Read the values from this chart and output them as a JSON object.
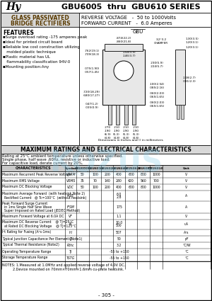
{
  "title": "GBU6005  thru  GBU610 SERIES",
  "logo_text": "Hy",
  "header_left_line1": "GLASS PASSIVATED",
  "header_left_line2": "BRIDGE RECTIFIERS",
  "header_right_line1": "REVERSE VOLTAGE   -  50 to 1000Volts",
  "header_right_line2": "FORWARD CURRENT   -  6.0 Amperes",
  "features_title": "FEATURES",
  "features": [
    "▪Surge overload rating -175 amperes peak",
    "▪Ideal for printed circuit board",
    "▪Reliable low cost construction utilizing",
    "   molded plastic technique",
    "▪Plastic material has UL",
    "   flammability classification 94V-0",
    "▪Mounting position:Any"
  ],
  "max_ratings_title": "MAXIMUM RATINGS AND ELECTRICAL CHARACTERISTICS",
  "rating_note1": "Rating at 25°C ambient temperature unless otherwise specified.",
  "rating_note2": "Single phase, half wave ,60Hz, resistive or inductive load.",
  "rating_note3": "For capacitive load, derate current by 20%.",
  "table_header": [
    "CHARACTERISTICS",
    "Symbol",
    "GBU6005",
    "GBU601",
    "GBU602",
    "GBU604",
    "GBU606",
    "GBU608",
    "GBU6010",
    "Unit"
  ],
  "table_rows": [
    [
      "Maximum Recurrent Peak Reverse Voltage",
      "VRRM",
      "50",
      "100",
      "200",
      "400",
      "600",
      "800",
      "1000",
      "V"
    ],
    [
      "Maximum RMS Voltage",
      "VRMS",
      "35",
      "70",
      "140",
      "280",
      "420",
      "560",
      "700",
      "V"
    ],
    [
      "Maximum DC Blocking Voltage",
      "VDC",
      "50",
      "100",
      "200",
      "400",
      "600",
      "800",
      "1000",
      "V"
    ],
    [
      "Maximum Average Forward  (with heatsink Note 2)\n  Rectified Current   @ Tc=100°C  (without heatsink)",
      "IAVE",
      "",
      "",
      "",
      "6.0\n2.8",
      "",
      "",
      "",
      "A"
    ],
    [
      "Peak Forward Surge Current\n  in 1ms Single Half Sine Wave\n  Super Imposed on Rated Load (JEDEC Method)",
      "IFSM",
      "",
      "",
      "",
      "175",
      "",
      "",
      "",
      "A"
    ],
    [
      "Maximum Forward Voltage at 6.0A DC",
      "VF",
      "",
      "",
      "",
      "1.1",
      "",
      "",
      "",
      "V"
    ],
    [
      "Maximum DC Reverse Current    @ TJ=25°C\n  at Rated DC Blocking Voltage    @ TJ=125°C",
      "IR",
      "",
      "",
      "",
      "10.0\n500",
      "",
      "",
      "",
      "uA"
    ],
    [
      "I²t Rating for Fusing (A²s-1ms)",
      "I²t",
      "",
      "",
      "",
      "507",
      "",
      "",
      "",
      "A²s"
    ],
    [
      "Typical Junction Capacitance Per Element (Note1)",
      "CJ",
      "",
      "",
      "",
      "50",
      "",
      "",
      "",
      "pF"
    ],
    [
      "Typical Thermal Resistance (Note2)",
      "Rthc",
      "",
      "",
      "",
      "3.2",
      "",
      "",
      "",
      "°C/W"
    ],
    [
      "Operating Temperature Range",
      "TJ",
      "",
      "",
      "",
      "-55 to +150",
      "",
      "",
      "",
      "°C"
    ],
    [
      "Storage Temperature Range",
      "TSTG",
      "",
      "",
      "",
      "-55 to +150",
      "",
      "",
      "",
      "°C"
    ]
  ],
  "notes": [
    "NOTES: 1.Measured at 1.0MHz and applied reverse voltage of 4.0V DC.",
    "          2.Device mounted on 70mm×70mm×1.6mm cu-plate heatsink."
  ],
  "page_num": "- 305 -",
  "wm_text": "KOZUS",
  "wm_sub": "ИНФОРМАЦИОННЫЙ ПОРТАЛ"
}
